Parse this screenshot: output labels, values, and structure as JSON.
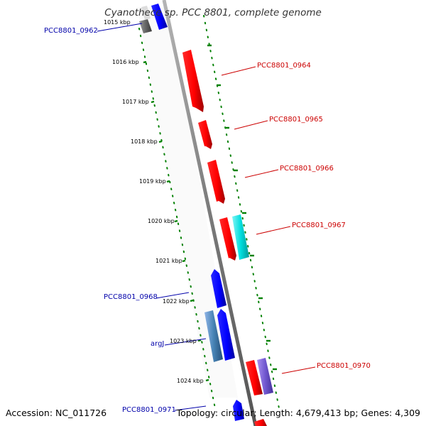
{
  "title": "Cyanothece sp. PCC 8801, complete genome",
  "footer": {
    "accession": "Accession: NC_011726",
    "summary": "Topology: circular; Length: 4,679,413 bp; Genes: 4,309"
  },
  "colors": {
    "forward_gene": "#ff0000",
    "reverse_gene": "#0000ff",
    "forward_label": "#cc0000",
    "reverse_label": "#0000aa",
    "tick": "#008000",
    "backbone": "#808080"
  },
  "map": {
    "position_labels": [
      "1015 kbp",
      "1016 kbp",
      "1017 kbp",
      "1018 kbp",
      "1019 kbp",
      "1020 kbp",
      "1021 kbp",
      "1022 kbp",
      "1023 kbp",
      "1024 kbp"
    ],
    "genes": [
      {
        "label": "PCC8801_0962",
        "strand": "reverse",
        "color": "#0000ff"
      },
      {
        "label": "PCC8801_0964",
        "strand": "forward",
        "color": "#ff0000"
      },
      {
        "label": "PCC8801_0965",
        "strand": "forward",
        "color": "#ff0000"
      },
      {
        "label": "PCC8801_0966",
        "strand": "forward",
        "color": "#ff0000"
      },
      {
        "label": "PCC8801_0967",
        "strand": "forward",
        "color": "#ff0000"
      },
      {
        "label": "PCC8801_0968",
        "strand": "reverse",
        "color": "#0000ff"
      },
      {
        "label": "argJ",
        "strand": "reverse",
        "color": "#0000ff"
      },
      {
        "label": "PCC8801_0970",
        "strand": "forward",
        "color": "#ff0000"
      },
      {
        "label": "PCC8801_0971",
        "strand": "reverse",
        "color": "#0000ff"
      }
    ]
  }
}
